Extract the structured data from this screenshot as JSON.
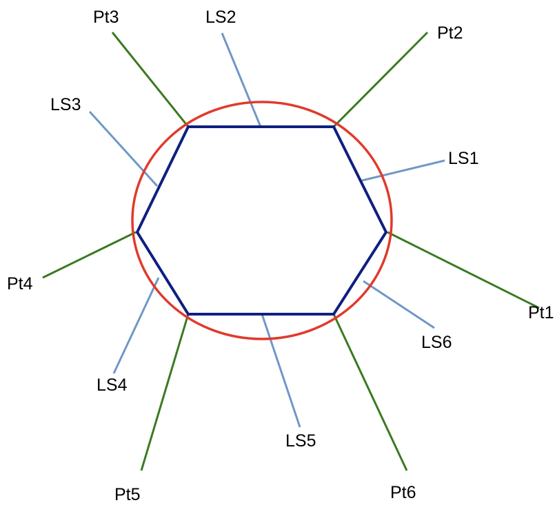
{
  "colors": {
    "circle": "#e03a2c",
    "hexagon": "#0f1f80",
    "point_leader": "#3a7a22",
    "segment_leader": "#6f97c7",
    "text": "#000000"
  },
  "points": [
    {
      "id": "pt1",
      "label": "Pt1"
    },
    {
      "id": "pt2",
      "label": "Pt2"
    },
    {
      "id": "pt3",
      "label": "Pt3"
    },
    {
      "id": "pt4",
      "label": "Pt4"
    },
    {
      "id": "pt5",
      "label": "Pt5"
    },
    {
      "id": "pt6",
      "label": "Pt6"
    }
  ],
  "segments": [
    {
      "id": "ls1",
      "label": "LS1"
    },
    {
      "id": "ls2",
      "label": "LS2"
    },
    {
      "id": "ls3",
      "label": "LS3"
    },
    {
      "id": "ls4",
      "label": "LS4"
    },
    {
      "id": "ls5",
      "label": "LS5"
    },
    {
      "id": "ls6",
      "label": "LS6"
    }
  ]
}
